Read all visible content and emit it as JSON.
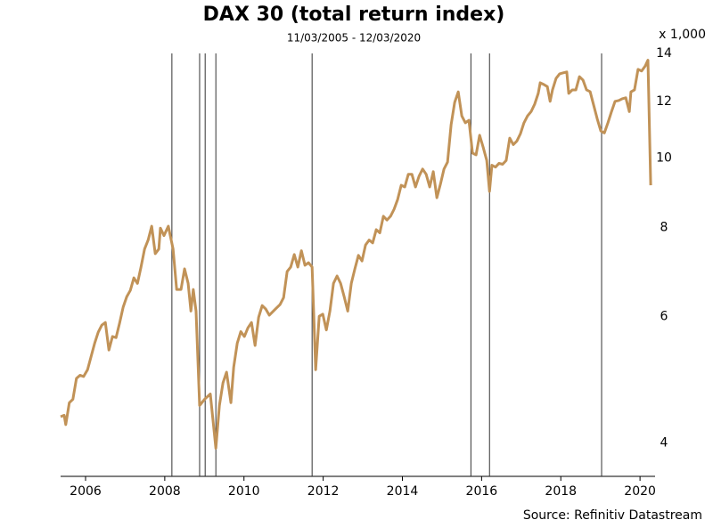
{
  "chart_data": {
    "type": "line",
    "title": "DAX 30 (total return index)",
    "subtitle": "11/03/2005 - 12/03/2020",
    "y_unit_label": "x 1,000",
    "source": "Source: Refinitiv Datastream",
    "color": "#c19257",
    "log_y": true,
    "xlim": [
      2005.37,
      2020.38
    ],
    "xticks": [
      2006,
      2008,
      2010,
      2012,
      2014,
      2016,
      2018,
      2020
    ],
    "ylim": [
      3.59,
      14
    ],
    "yticks": [
      4,
      6,
      8,
      10,
      12,
      14
    ],
    "vlines": [
      2008.18,
      2008.88,
      2009.02,
      2009.29,
      2011.72,
      2015.73,
      2016.2,
      2019.03
    ],
    "vline_color": "#333333",
    "x": [
      2005.37,
      2005.46,
      2005.5,
      2005.59,
      2005.68,
      2005.77,
      2005.86,
      2005.95,
      2006.05,
      2006.14,
      2006.23,
      2006.32,
      2006.41,
      2006.5,
      2006.59,
      2006.68,
      2006.77,
      2006.86,
      2006.95,
      2007.04,
      2007.13,
      2007.22,
      2007.31,
      2007.4,
      2007.49,
      2007.58,
      2007.67,
      2007.76,
      2007.85,
      2007.89,
      2007.98,
      2008.09,
      2008.21,
      2008.3,
      2008.41,
      2008.5,
      2008.59,
      2008.66,
      2008.72,
      2008.79,
      2008.88,
      2009.02,
      2009.15,
      2009.29,
      2009.38,
      2009.47,
      2009.56,
      2009.67,
      2009.74,
      2009.83,
      2009.92,
      2010.01,
      2010.1,
      2010.19,
      2010.28,
      2010.37,
      2010.46,
      2010.55,
      2010.64,
      2010.73,
      2010.82,
      2010.91,
      2011.0,
      2011.09,
      2011.18,
      2011.27,
      2011.36,
      2011.45,
      2011.54,
      2011.63,
      2011.72,
      2011.81,
      2011.9,
      2011.99,
      2012.08,
      2012.17,
      2012.26,
      2012.35,
      2012.44,
      2012.53,
      2012.62,
      2012.71,
      2012.8,
      2012.89,
      2012.98,
      2013.07,
      2013.16,
      2013.25,
      2013.34,
      2013.43,
      2013.52,
      2013.61,
      2013.7,
      2013.79,
      2013.88,
      2013.97,
      2014.06,
      2014.15,
      2014.24,
      2014.33,
      2014.42,
      2014.51,
      2014.6,
      2014.69,
      2014.78,
      2014.87,
      2014.96,
      2015.05,
      2015.14,
      2015.23,
      2015.32,
      2015.41,
      2015.5,
      2015.59,
      2015.68,
      2015.77,
      2015.86,
      2015.95,
      2016.04,
      2016.13,
      2016.2,
      2016.26,
      2016.35,
      2016.44,
      2016.53,
      2016.62,
      2016.71,
      2016.8,
      2016.89,
      2016.98,
      2017.07,
      2017.16,
      2017.25,
      2017.34,
      2017.43,
      2017.48,
      2017.57,
      2017.66,
      2017.73,
      2017.79,
      2017.88,
      2017.97,
      2018.06,
      2018.15,
      2018.2,
      2018.29,
      2018.38,
      2018.47,
      2018.56,
      2018.65,
      2018.74,
      2018.83,
      2018.92,
      2019.01,
      2019.1,
      2019.19,
      2019.28,
      2019.37,
      2019.46,
      2019.55,
      2019.64,
      2019.73,
      2019.77,
      2019.86,
      2019.95,
      2020.04,
      2020.13,
      2020.2,
      2020.27
    ],
    "values": [
      4.35,
      4.37,
      4.24,
      4.55,
      4.6,
      4.92,
      4.97,
      4.95,
      5.06,
      5.28,
      5.51,
      5.71,
      5.84,
      5.89,
      5.39,
      5.63,
      5.61,
      5.88,
      6.19,
      6.4,
      6.53,
      6.8,
      6.68,
      7.04,
      7.46,
      7.68,
      8.03,
      7.35,
      7.46,
      7.98,
      7.79,
      8.03,
      7.46,
      6.55,
      6.55,
      7.0,
      6.68,
      6.11,
      6.55,
      6.11,
      4.51,
      4.61,
      4.68,
      3.93,
      4.51,
      4.85,
      5.02,
      4.55,
      5.1,
      5.51,
      5.72,
      5.63,
      5.79,
      5.89,
      5.47,
      5.99,
      6.22,
      6.15,
      6.03,
      6.1,
      6.17,
      6.24,
      6.38,
      6.94,
      7.04,
      7.33,
      7.04,
      7.42,
      7.08,
      7.14,
      7.04,
      5.06,
      6.01,
      6.05,
      5.75,
      6.11,
      6.68,
      6.84,
      6.68,
      6.4,
      6.11,
      6.68,
      7.0,
      7.31,
      7.18,
      7.56,
      7.68,
      7.61,
      7.94,
      7.86,
      8.29,
      8.19,
      8.29,
      8.48,
      8.75,
      9.16,
      9.11,
      9.49,
      9.49,
      9.11,
      9.43,
      9.65,
      9.49,
      9.11,
      9.57,
      8.8,
      9.19,
      9.65,
      9.87,
      11.13,
      11.96,
      12.37,
      11.45,
      11.2,
      11.29,
      10.16,
      10.1,
      10.76,
      10.35,
      9.92,
      8.98,
      9.77,
      9.71,
      9.83,
      9.8,
      9.92,
      10.66,
      10.44,
      10.56,
      10.81,
      11.2,
      11.45,
      11.61,
      11.89,
      12.31,
      12.74,
      12.67,
      12.58,
      12.0,
      12.45,
      12.92,
      13.11,
      13.15,
      13.19,
      12.31,
      12.45,
      12.45,
      12.99,
      12.85,
      12.45,
      12.38,
      11.85,
      11.34,
      10.91,
      10.84,
      11.2,
      11.61,
      12.0,
      12.03,
      12.1,
      12.14,
      11.61,
      12.37,
      12.45,
      13.3,
      13.23,
      13.44,
      13.7,
      9.16
    ]
  }
}
